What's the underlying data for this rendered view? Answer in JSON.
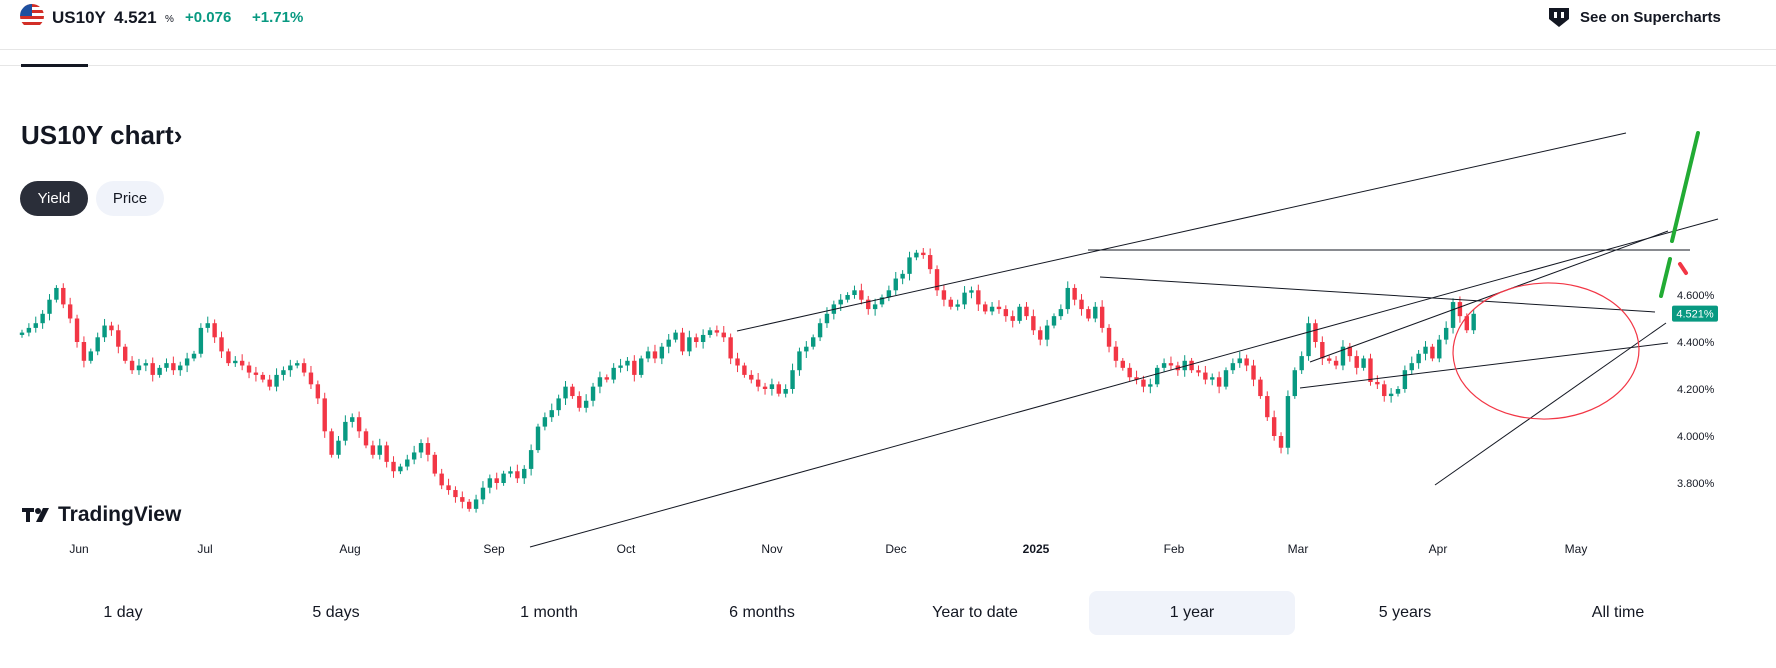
{
  "header": {
    "symbol": "US10Y",
    "price": "4.521",
    "unit": "%",
    "change": "+0.076",
    "change_pct": "+1.71%",
    "supercharts_label": "See on Supercharts",
    "flag_icon": "us-flag-icon",
    "accent_up": "#089981",
    "accent_down": "#f23645"
  },
  "title": {
    "text": "US10Y chart",
    "arrow": "›"
  },
  "toggles": [
    {
      "label": "Yield",
      "active": true
    },
    {
      "label": "Price",
      "active": false
    }
  ],
  "logo": {
    "text": "TradingView"
  },
  "ranges": [
    {
      "label": "1 day",
      "active": false
    },
    {
      "label": "5 days",
      "active": false
    },
    {
      "label": "1 month",
      "active": false
    },
    {
      "label": "6 months",
      "active": false
    },
    {
      "label": "Year to date",
      "active": false
    },
    {
      "label": "1 year",
      "active": true
    },
    {
      "label": "5 years",
      "active": false
    },
    {
      "label": "All time",
      "active": false
    }
  ],
  "chart_data": {
    "type": "candlestick",
    "x_ticks": [
      "Jun",
      "Jul",
      "Aug",
      "Sep",
      "Oct",
      "Nov",
      "Dec",
      "2025",
      "Feb",
      "Mar",
      "Apr",
      "May"
    ],
    "y_ticks": [
      "4.600%",
      "4.400%",
      "4.200%",
      "4.000%",
      "3.800%"
    ],
    "y_tick_values": [
      4.6,
      4.4,
      4.2,
      4.0,
      3.8
    ],
    "last_value_label": "4.521%",
    "last_value": 4.521,
    "ylim": [
      3.75,
      4.85
    ],
    "series": [
      {
        "name": "US10Y",
        "close": [
          4.44,
          4.46,
          4.48,
          4.52,
          4.58,
          4.63,
          4.56,
          4.5,
          4.4,
          4.32,
          4.36,
          4.42,
          4.47,
          4.45,
          4.38,
          4.32,
          4.28,
          4.3,
          4.31,
          4.26,
          4.29,
          4.31,
          4.28,
          4.3,
          4.33,
          4.35,
          4.46,
          4.48,
          4.42,
          4.36,
          4.31,
          4.32,
          4.3,
          4.27,
          4.26,
          4.24,
          4.21,
          4.26,
          4.28,
          4.3,
          4.31,
          4.27,
          4.22,
          4.16,
          4.02,
          3.92,
          3.98,
          4.06,
          4.08,
          4.02,
          3.96,
          3.92,
          3.96,
          3.89,
          3.85,
          3.87,
          3.9,
          3.93,
          3.97,
          3.92,
          3.84,
          3.79,
          3.77,
          3.74,
          3.72,
          3.69,
          3.73,
          3.78,
          3.82,
          3.8,
          3.84,
          3.85,
          3.82,
          3.86,
          3.94,
          4.04,
          4.08,
          4.11,
          4.16,
          4.21,
          4.17,
          4.12,
          4.15,
          4.21,
          4.25,
          4.24,
          4.29,
          4.3,
          4.32,
          4.26,
          4.33,
          4.36,
          4.33,
          4.38,
          4.41,
          4.44,
          4.36,
          4.42,
          4.4,
          4.43,
          4.45,
          4.44,
          4.42,
          4.33,
          4.3,
          4.26,
          4.24,
          4.21,
          4.2,
          4.22,
          4.18,
          4.2,
          4.28,
          4.36,
          4.38,
          4.42,
          4.48,
          4.52,
          4.56,
          4.58,
          4.6,
          4.62,
          4.58,
          4.54,
          4.56,
          4.59,
          4.62,
          4.67,
          4.69,
          4.76,
          4.78,
          4.77,
          4.71,
          4.62,
          4.58,
          4.55,
          4.56,
          4.61,
          4.62,
          4.56,
          4.53,
          4.55,
          4.54,
          4.51,
          4.49,
          4.55,
          4.51,
          4.45,
          4.41,
          4.47,
          4.51,
          4.54,
          4.63,
          4.58,
          4.54,
          4.5,
          4.55,
          4.46,
          4.38,
          4.32,
          4.29,
          4.25,
          4.24,
          4.21,
          4.22,
          4.29,
          4.31,
          4.3,
          4.28,
          4.32,
          4.28,
          4.27,
          4.24,
          4.25,
          4.21,
          4.28,
          4.31,
          4.33,
          4.3,
          4.24,
          4.17,
          4.08,
          4.0,
          3.95,
          4.17,
          4.28,
          4.34,
          4.48,
          4.4,
          4.33,
          4.32,
          4.3,
          4.38,
          4.34,
          4.29,
          4.33,
          4.23,
          4.22,
          4.17,
          4.18,
          4.2,
          4.28,
          4.31,
          4.35,
          4.38,
          4.33,
          4.41,
          4.46,
          4.57,
          4.51,
          4.45,
          4.52
        ]
      }
    ]
  }
}
